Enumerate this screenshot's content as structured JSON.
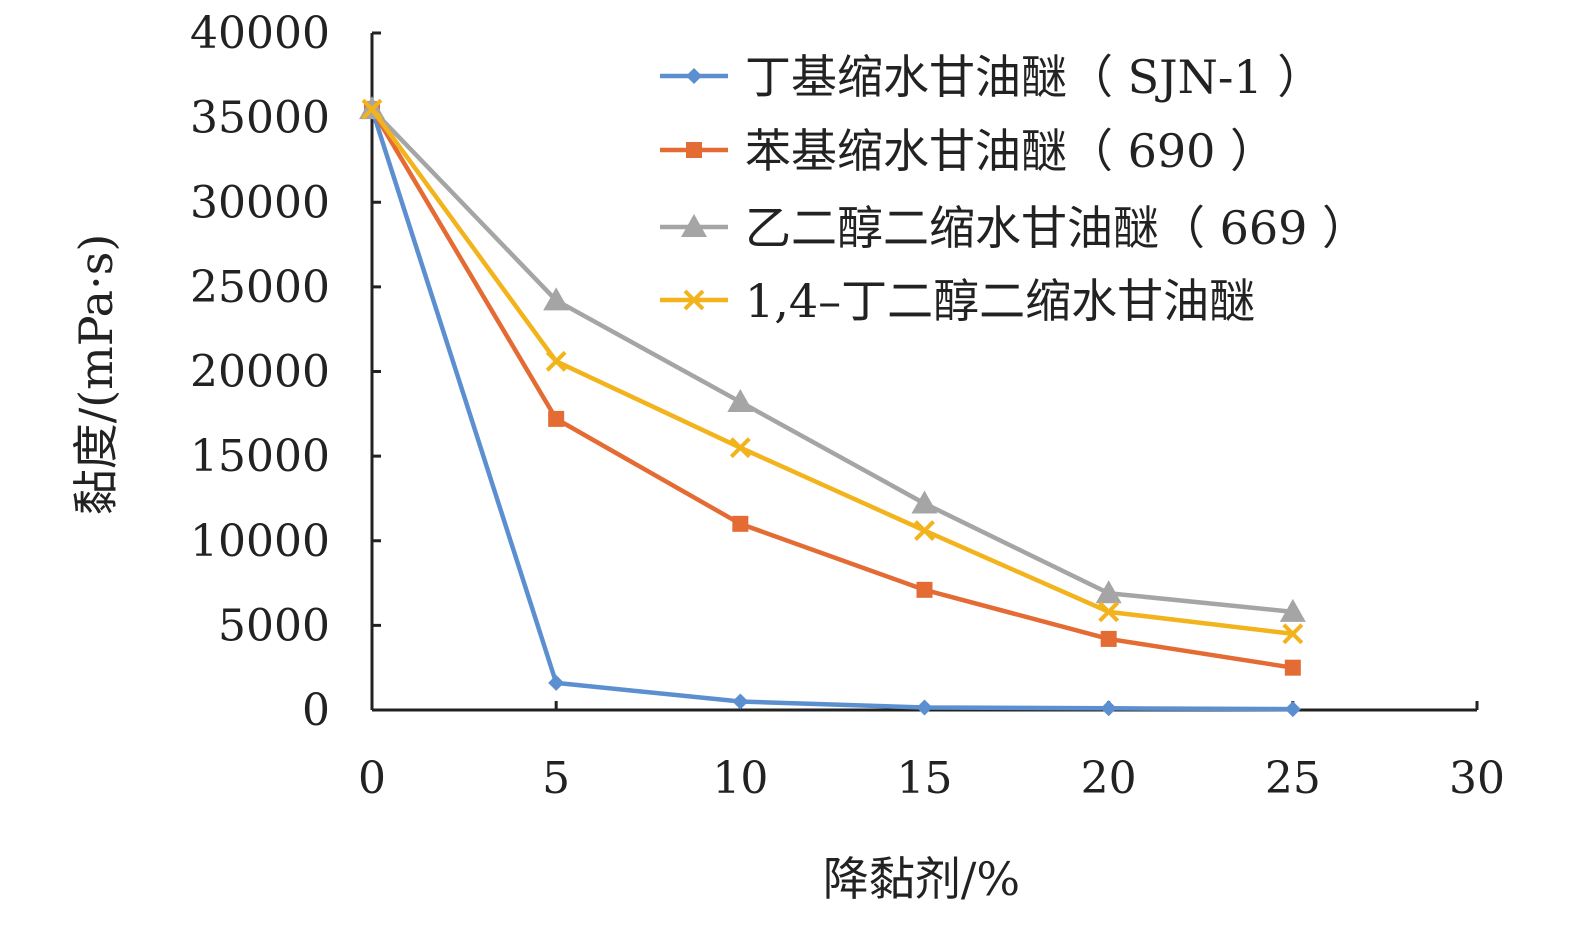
{
  "chart_data": {
    "type": "line",
    "xlabel": "降黏剂/%",
    "ylabel": "黏度/(mPa·s)",
    "xlim": [
      0,
      30
    ],
    "ylim": [
      0,
      40000
    ],
    "x_ticks": [
      0,
      5,
      10,
      15,
      20,
      25,
      30
    ],
    "y_ticks": [
      0,
      5000,
      10000,
      15000,
      20000,
      25000,
      30000,
      35000,
      40000
    ],
    "x_tick_labels": [
      "0",
      "5",
      "10",
      "15",
      "20",
      "25",
      "30"
    ],
    "y_tick_labels": [
      "0",
      "5000",
      "10000",
      "15000",
      "20000",
      "25000",
      "30000",
      "35000",
      "40000"
    ],
    "grid": false,
    "legend_position": "top-right",
    "x": [
      0,
      5,
      10,
      15,
      20,
      25
    ],
    "series": [
      {
        "name": "丁基缩水甘油醚（ SJN-1 ）",
        "color": "#5b8fd0",
        "marker": "diamond",
        "values": [
          35500,
          1600,
          500,
          150,
          100,
          50
        ]
      },
      {
        "name": "苯基缩水甘油醚（ 690 ）",
        "color": "#e46c34",
        "marker": "square",
        "values": [
          35500,
          17200,
          11000,
          7100,
          4200,
          2500
        ]
      },
      {
        "name": "乙二醇二缩水甘油醚（ 669 ）",
        "color": "#a5a5a5",
        "marker": "triangle",
        "values": [
          35500,
          24200,
          18200,
          12200,
          6900,
          5800
        ]
      },
      {
        "name": "1,4–丁二醇二缩水甘油醚",
        "color": "#f2b31c",
        "marker": "x",
        "values": [
          35500,
          20600,
          15500,
          10600,
          5800,
          4500
        ]
      }
    ]
  }
}
